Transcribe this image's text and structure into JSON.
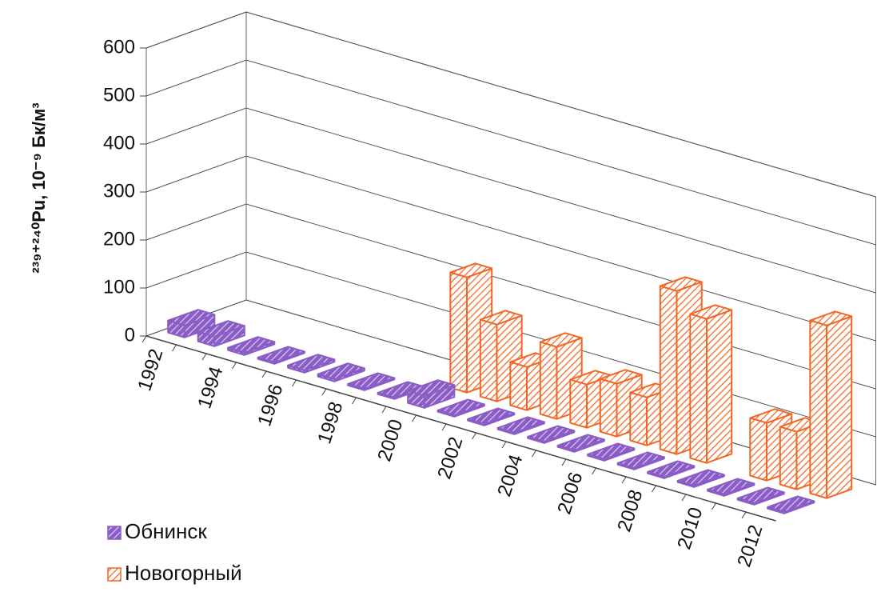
{
  "chart_data": {
    "type": "bar3d",
    "y_label": "²³⁹⁺²⁴⁰Pu, 10⁻⁹ Бк/м³",
    "categories": [
      "1992",
      null,
      "1994",
      null,
      "1996",
      null,
      "1998",
      null,
      "2000",
      null,
      "2002",
      null,
      "2004",
      null,
      "2006",
      null,
      "2008",
      null,
      "2010",
      null,
      "2012"
    ],
    "series": [
      {
        "name": "Обнинск",
        "color": "#8a5cc6",
        "values": [
          25,
          20,
          5,
          3,
          5,
          5,
          3,
          3,
          25,
          3,
          3,
          3,
          3,
          3,
          3,
          3,
          3,
          3,
          3,
          3,
          3
        ]
      },
      {
        "name": "Новогорный",
        "color": "#f26522",
        "values": [
          null,
          null,
          null,
          null,
          null,
          null,
          null,
          null,
          240,
          160,
          90,
          150,
          90,
          110,
          100,
          340,
          300,
          null,
          120,
          120,
          360
        ]
      }
    ],
    "ylim": [
      0,
      600
    ],
    "yticks": [
      0,
      100,
      200,
      300,
      400,
      500,
      600
    ],
    "grid": true,
    "legend": "bottom-left"
  }
}
